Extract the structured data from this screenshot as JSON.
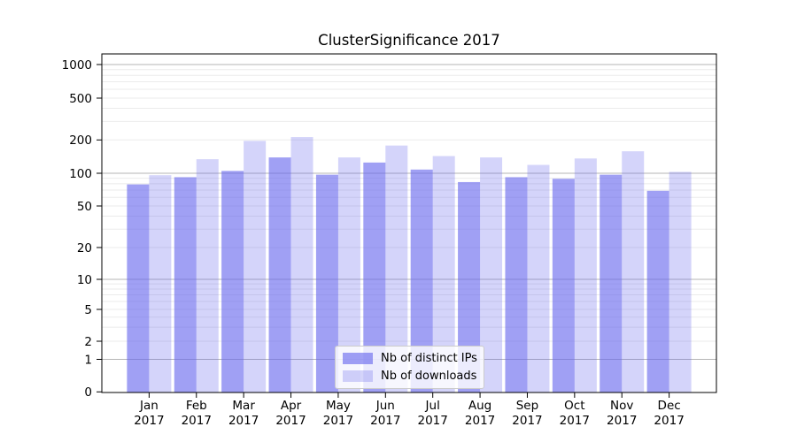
{
  "chart_data": {
    "type": "bar",
    "title": "ClusterSignificance 2017",
    "yscale": "symlog",
    "grid": true,
    "legend_position": "lower center",
    "ylim": [
      0,
      1200
    ],
    "y_ticks": [
      0,
      1,
      2,
      5,
      10,
      20,
      50,
      100,
      200,
      500,
      1000
    ],
    "categories": [
      {
        "month": "Jan",
        "year": "2017"
      },
      {
        "month": "Feb",
        "year": "2017"
      },
      {
        "month": "Mar",
        "year": "2017"
      },
      {
        "month": "Apr",
        "year": "2017"
      },
      {
        "month": "May",
        "year": "2017"
      },
      {
        "month": "Jun",
        "year": "2017"
      },
      {
        "month": "Jul",
        "year": "2017"
      },
      {
        "month": "Aug",
        "year": "2017"
      },
      {
        "month": "Sep",
        "year": "2017"
      },
      {
        "month": "Oct",
        "year": "2017"
      },
      {
        "month": "Nov",
        "year": "2017"
      },
      {
        "month": "Dec",
        "year": "2017"
      }
    ],
    "series": [
      {
        "name": "Nb of distinct IPs",
        "color": "#6666ee",
        "opacity": 0.62,
        "values": [
          79,
          92,
          105,
          139,
          97,
          125,
          108,
          83,
          92,
          89,
          97,
          69
        ]
      },
      {
        "name": "Nb of downloads",
        "color": "#6666ee",
        "opacity": 0.28,
        "values": [
          96,
          134,
          196,
          213,
          139,
          178,
          143,
          139,
          119,
          136,
          158,
          103
        ]
      }
    ],
    "colors": {
      "major_grid": "#b5b5b5",
      "minor_grid": "#ebebeb",
      "spine": "#000000",
      "text": "#000000"
    }
  }
}
